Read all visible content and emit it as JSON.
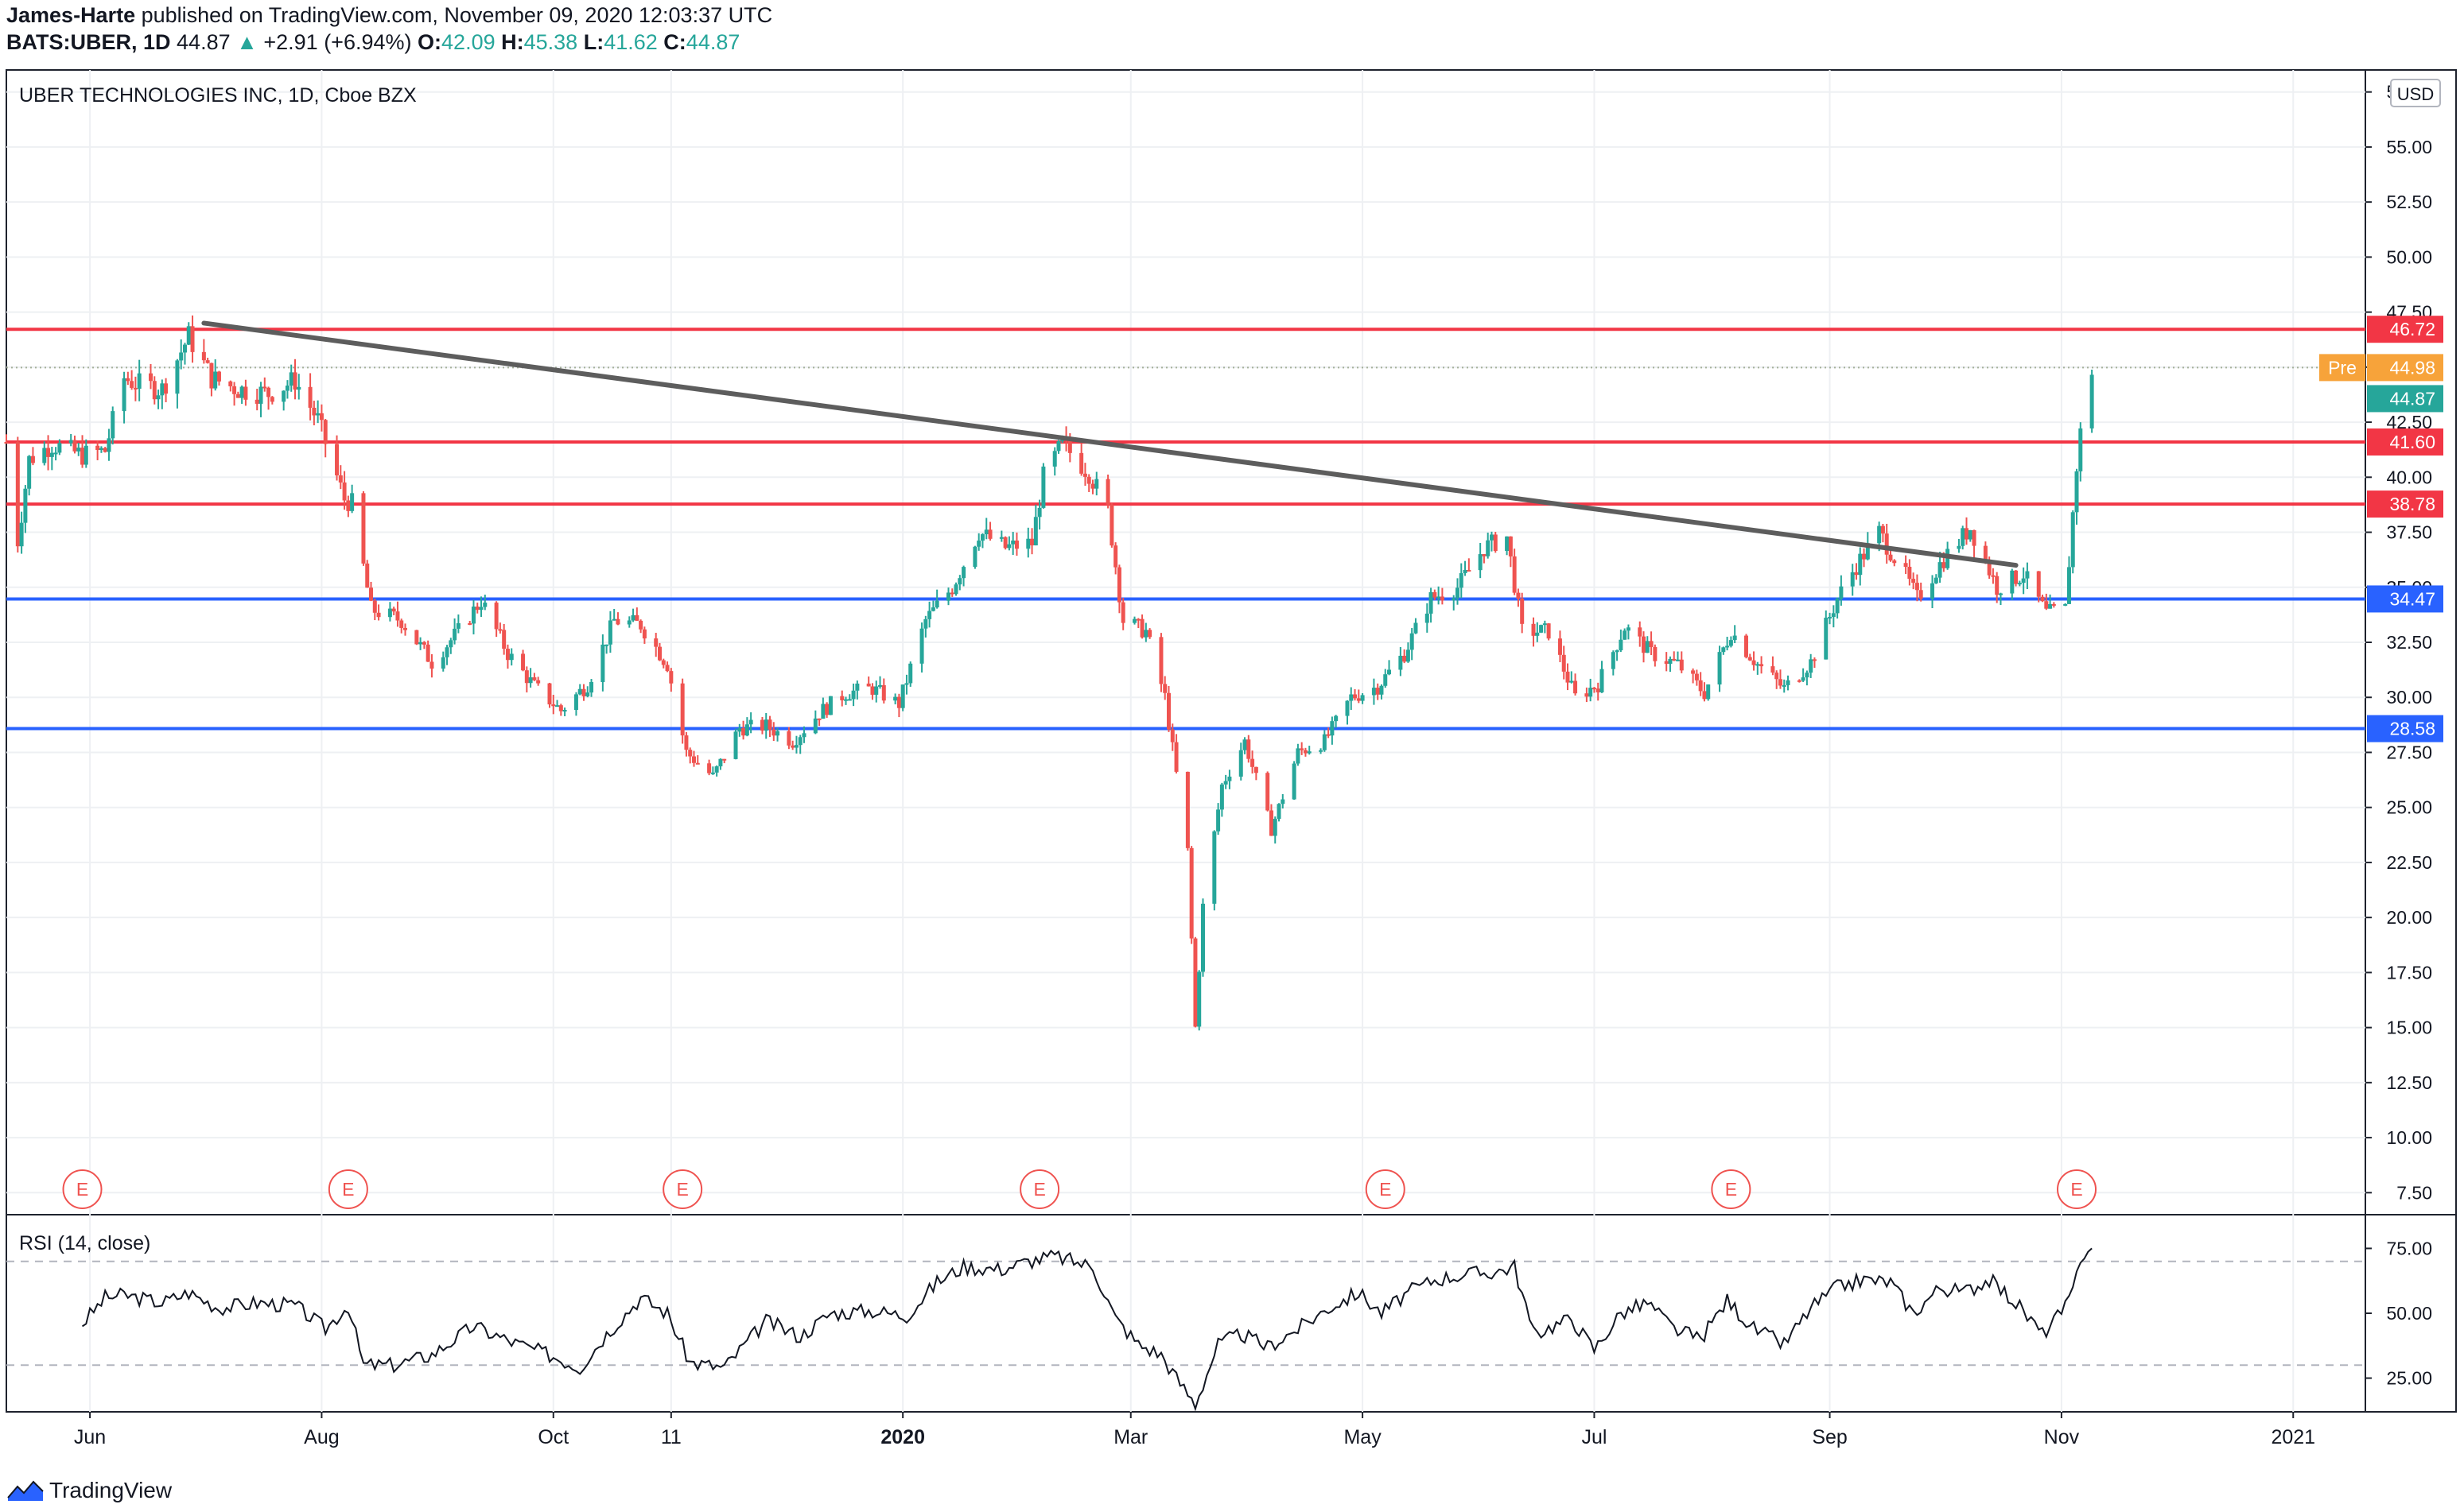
{
  "header": {
    "author": "James-Harte",
    "published": "published on TradingView.com, November 09, 2020 12:03:37 UTC",
    "symbol": "BATS:UBER, 1D",
    "last": "44.87",
    "change": "+2.91 (+6.94%)",
    "o_label": "O:",
    "o_value": "42.09",
    "h_label": "H:",
    "h_value": "45.38",
    "l_label": "L:",
    "l_value": "41.62",
    "c_label": "C:",
    "c_value": "44.87"
  },
  "footer": {
    "brand": "TradingView"
  },
  "chart_data": {
    "type": "candlestick",
    "title": "UBER TECHNOLOGIES INC, 1D, Cboe BZX",
    "currency": "USD",
    "y_ticks": [
      "57.50",
      "55.00",
      "52.50",
      "50.00",
      "47.50",
      "45.00",
      "42.50",
      "40.00",
      "37.50",
      "35.00",
      "32.50",
      "30.00",
      "27.50",
      "25.00",
      "22.50",
      "20.00",
      "17.50",
      "15.00",
      "12.50",
      "10.00",
      "7.50"
    ],
    "ylim": [
      6.5,
      58.5
    ],
    "x_ticks": [
      "Jun",
      "Aug",
      "Oct",
      "11",
      "2020",
      "Mar",
      "May",
      "Jul",
      "Sep",
      "Nov",
      "2021"
    ],
    "x_start": "2019-05-10",
    "x_end": "2021-01-20",
    "series_points": [
      [
        "2019-05-10",
        41.6
      ],
      [
        "2019-05-13",
        37.1
      ],
      [
        "2019-05-16",
        40.8
      ],
      [
        "2019-05-22",
        41.5
      ],
      [
        "2019-05-30",
        41.0
      ],
      [
        "2019-06-05",
        41.2
      ],
      [
        "2019-06-10",
        44.5
      ],
      [
        "2019-06-14",
        44.2
      ],
      [
        "2019-06-20",
        44.0
      ],
      [
        "2019-06-27",
        46.4
      ],
      [
        "2019-07-03",
        44.5
      ],
      [
        "2019-07-10",
        44.0
      ],
      [
        "2019-07-18",
        43.8
      ],
      [
        "2019-07-25",
        44.4
      ],
      [
        "2019-07-31",
        42.6
      ],
      [
        "2019-08-07",
        39.0
      ],
      [
        "2019-08-09",
        38.8
      ],
      [
        "2019-08-14",
        34.0
      ],
      [
        "2019-08-22",
        33.5
      ],
      [
        "2019-08-30",
        31.6
      ],
      [
        "2019-09-06",
        33.0
      ],
      [
        "2019-09-12",
        34.4
      ],
      [
        "2019-09-19",
        32.0
      ],
      [
        "2019-09-26",
        30.5
      ],
      [
        "2019-10-03",
        29.4
      ],
      [
        "2019-10-10",
        30.6
      ],
      [
        "2019-10-17",
        33.5
      ],
      [
        "2019-10-24",
        33.3
      ],
      [
        "2019-10-31",
        31.5
      ],
      [
        "2019-11-05",
        27.5
      ],
      [
        "2019-11-12",
        26.4
      ],
      [
        "2019-11-19",
        28.6
      ],
      [
        "2019-11-26",
        28.7
      ],
      [
        "2019-12-03",
        28.0
      ],
      [
        "2019-12-10",
        29.3
      ],
      [
        "2019-12-17",
        30.2
      ],
      [
        "2019-12-24",
        30.4
      ],
      [
        "2019-12-31",
        29.7
      ],
      [
        "2020-01-07",
        33.5
      ],
      [
        "2020-01-14",
        35.0
      ],
      [
        "2020-01-21",
        37.5
      ],
      [
        "2020-01-28",
        36.8
      ],
      [
        "2020-02-04",
        37.0
      ],
      [
        "2020-02-07",
        40.0
      ],
      [
        "2020-02-12",
        41.5
      ],
      [
        "2020-02-19",
        40.2
      ],
      [
        "2020-02-24",
        38.5
      ],
      [
        "2020-02-28",
        33.5
      ],
      [
        "2020-03-05",
        33.0
      ],
      [
        "2020-03-10",
        30.0
      ],
      [
        "2020-03-16",
        23.0
      ],
      [
        "2020-03-18",
        15.0
      ],
      [
        "2020-03-20",
        20.5
      ],
      [
        "2020-03-25",
        26.0
      ],
      [
        "2020-03-31",
        28.0
      ],
      [
        "2020-04-07",
        24.0
      ],
      [
        "2020-04-14",
        27.5
      ],
      [
        "2020-04-21",
        28.0
      ],
      [
        "2020-04-28",
        30.0
      ],
      [
        "2020-05-05",
        30.5
      ],
      [
        "2020-05-12",
        32.0
      ],
      [
        "2020-05-19",
        34.5
      ],
      [
        "2020-05-26",
        35.0
      ],
      [
        "2020-06-02",
        36.8
      ],
      [
        "2020-06-08",
        37.3
      ],
      [
        "2020-06-12",
        33.0
      ],
      [
        "2020-06-19",
        33.0
      ],
      [
        "2020-06-26",
        30.0
      ],
      [
        "2020-07-02",
        30.6
      ],
      [
        "2020-07-09",
        33.2
      ],
      [
        "2020-07-16",
        32.0
      ],
      [
        "2020-07-23",
        31.5
      ],
      [
        "2020-07-30",
        30.2
      ],
      [
        "2020-08-06",
        33.0
      ],
      [
        "2020-08-13",
        31.5
      ],
      [
        "2020-08-20",
        30.4
      ],
      [
        "2020-08-27",
        31.6
      ],
      [
        "2020-09-03",
        34.5
      ],
      [
        "2020-09-08",
        36.0
      ],
      [
        "2020-09-14",
        37.5
      ],
      [
        "2020-09-21",
        35.5
      ],
      [
        "2020-09-24",
        34.5
      ],
      [
        "2020-10-01",
        36.3
      ],
      [
        "2020-10-08",
        37.7
      ],
      [
        "2020-10-15",
        35.0
      ],
      [
        "2020-10-22",
        35.6
      ],
      [
        "2020-10-28",
        33.8
      ],
      [
        "2020-11-02",
        34.0
      ],
      [
        "2020-11-05",
        40.5
      ],
      [
        "2020-11-06",
        42.0
      ],
      [
        "2020-11-09",
        44.87
      ]
    ],
    "horizontal_levels": [
      {
        "label": "46.72",
        "value": 46.72,
        "color": "#f23645"
      },
      {
        "label": "41.60",
        "value": 41.6,
        "color": "#f23645"
      },
      {
        "label": "38.78",
        "value": 38.78,
        "color": "#f23645"
      },
      {
        "label": "34.47",
        "value": 34.47,
        "color": "#2962ff"
      },
      {
        "label": "28.58",
        "value": 28.58,
        "color": "#2962ff"
      }
    ],
    "trendline": {
      "from": [
        "2019-07-01",
        47.0
      ],
      "to": [
        "2020-10-20",
        36.0
      ],
      "color": "#5d5d5d"
    },
    "price_labels": [
      {
        "prefix": "Pre",
        "label": "44.98",
        "value": 44.98,
        "color": "#f7a33a"
      },
      {
        "label": "44.87",
        "value": 44.87,
        "color": "#26a69a"
      }
    ],
    "earnings_marker": "E",
    "earnings_dates": [
      "2019-05-30",
      "2019-08-08",
      "2019-11-04",
      "2020-02-06",
      "2020-05-07",
      "2020-08-06",
      "2020-11-05"
    ],
    "rsi": {
      "title": "RSI (14, close)",
      "y_ticks": [
        "75.00",
        "50.00",
        "25.00"
      ],
      "ylim": [
        12,
        88
      ],
      "bands": [
        70,
        30
      ],
      "points": [
        [
          "2019-05-30",
          46
        ],
        [
          "2019-06-05",
          56
        ],
        [
          "2019-06-10",
          57
        ],
        [
          "2019-06-20",
          54
        ],
        [
          "2019-06-27",
          58
        ],
        [
          "2019-07-05",
          52
        ],
        [
          "2019-07-15",
          54
        ],
        [
          "2019-07-25",
          53
        ],
        [
          "2019-08-02",
          44
        ],
        [
          "2019-08-08",
          53
        ],
        [
          "2019-08-12",
          30
        ],
        [
          "2019-08-20",
          30
        ],
        [
          "2019-08-30",
          34
        ],
        [
          "2019-09-10",
          45
        ],
        [
          "2019-09-20",
          39
        ],
        [
          "2019-09-30",
          34
        ],
        [
          "2019-10-08",
          29
        ],
        [
          "2019-10-15",
          42
        ],
        [
          "2019-10-24",
          56
        ],
        [
          "2019-10-31",
          50
        ],
        [
          "2019-11-06",
          31
        ],
        [
          "2019-11-15",
          29
        ],
        [
          "2019-11-26",
          47
        ],
        [
          "2019-12-05",
          41
        ],
        [
          "2019-12-13",
          50
        ],
        [
          "2019-12-24",
          51
        ],
        [
          "2020-01-02",
          49
        ],
        [
          "2020-01-10",
          62
        ],
        [
          "2020-01-17",
          68
        ],
        [
          "2020-01-27",
          67
        ],
        [
          "2020-02-03",
          70
        ],
        [
          "2020-02-10",
          72
        ],
        [
          "2020-02-20",
          68
        ],
        [
          "2020-02-26",
          48
        ],
        [
          "2020-03-03",
          38
        ],
        [
          "2020-03-09",
          34
        ],
        [
          "2020-03-13",
          25
        ],
        [
          "2020-03-18",
          15
        ],
        [
          "2020-03-24",
          38
        ],
        [
          "2020-03-30",
          42
        ],
        [
          "2020-04-06",
          37
        ],
        [
          "2020-04-14",
          44
        ],
        [
          "2020-04-22",
          52
        ],
        [
          "2020-04-30",
          58
        ],
        [
          "2020-05-06",
          50
        ],
        [
          "2020-05-13",
          58
        ],
        [
          "2020-05-20",
          63
        ],
        [
          "2020-05-28",
          65
        ],
        [
          "2020-06-05",
          66
        ],
        [
          "2020-06-10",
          68
        ],
        [
          "2020-06-15",
          42
        ],
        [
          "2020-06-25",
          48
        ],
        [
          "2020-07-01",
          36
        ],
        [
          "2020-07-08",
          50
        ],
        [
          "2020-07-15",
          54
        ],
        [
          "2020-07-22",
          44
        ],
        [
          "2020-07-29",
          40
        ],
        [
          "2020-08-05",
          55
        ],
        [
          "2020-08-12",
          44
        ],
        [
          "2020-08-20",
          38
        ],
        [
          "2020-08-27",
          52
        ],
        [
          "2020-09-03",
          60
        ],
        [
          "2020-09-10",
          63
        ],
        [
          "2020-09-17",
          62
        ],
        [
          "2020-09-23",
          50
        ],
        [
          "2020-09-30",
          60
        ],
        [
          "2020-10-06",
          58
        ],
        [
          "2020-10-13",
          63
        ],
        [
          "2020-10-20",
          54
        ],
        [
          "2020-10-27",
          42
        ],
        [
          "2020-11-02",
          52
        ],
        [
          "2020-11-04",
          58
        ],
        [
          "2020-11-06",
          72
        ],
        [
          "2020-11-09",
          75
        ]
      ]
    }
  }
}
